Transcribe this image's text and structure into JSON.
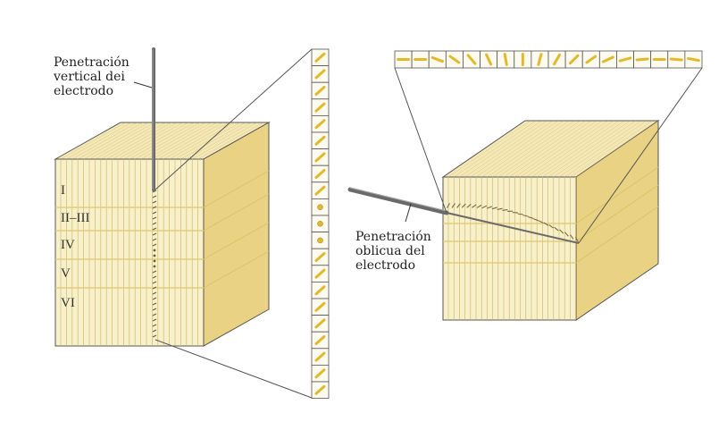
{
  "colors": {
    "block_front": "#f7f0c8",
    "block_top": "#f3e8b6",
    "block_side": "#e9d283",
    "stripe": "#c9b26a",
    "layer_line": "#e0c770",
    "outline": "#555555",
    "electrode": "#6a6a6a",
    "bar": "#e2b92a",
    "box_fill": "#fdfbf0"
  },
  "left_panel": {
    "label": [
      "Penetración",
      "vertical dei",
      "electrodo"
    ],
    "layers": [
      "I",
      "II–III",
      "IV",
      "V",
      "VI"
    ],
    "column_orientations": [
      "bar",
      "bar",
      "bar",
      "bar",
      "bar",
      "bar",
      "bar",
      "bar",
      "bar",
      "dot",
      "dot",
      "dot",
      "bar",
      "bar",
      "bar",
      "bar",
      "bar",
      "bar",
      "bar",
      "bar",
      "bar"
    ]
  },
  "right_panel": {
    "label": [
      "Penetración",
      "oblicua del",
      "electrodo"
    ],
    "row_orientation_angles": [
      0,
      0,
      -20,
      -35,
      -50,
      -65,
      -80,
      90,
      75,
      60,
      45,
      35,
      25,
      15,
      5,
      0,
      -5,
      -10
    ]
  }
}
